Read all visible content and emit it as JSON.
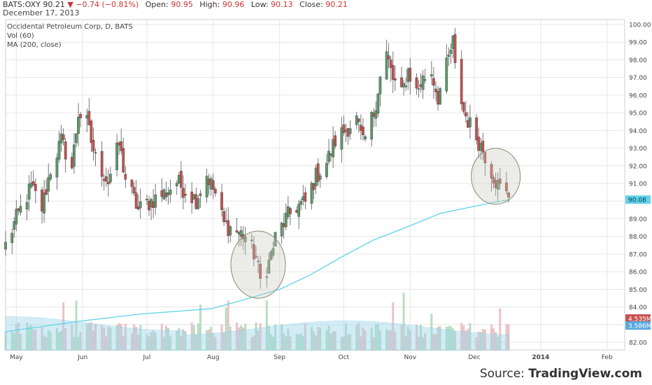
{
  "header": {
    "symbol": "BATS:OXY",
    "price": "90.21",
    "change": "−0.74 (−0.81%)",
    "open_label": "Open:",
    "open": "90.95",
    "high_label": "High:",
    "high": "90.96",
    "low_label": "Low:",
    "low": "90.13",
    "close_label": "Close:",
    "close": "90.21",
    "date": "December 17, 2013"
  },
  "legend": {
    "line1": "Occidental Petroleum Corp, D, BATS",
    "line2": "Vol (60)",
    "line3": "MA (200, close)"
  },
  "source": {
    "prefix": "Source: ",
    "brand": "TradingView.com"
  },
  "colors": {
    "up": "#5c9a6a",
    "down": "#c85050",
    "ma": "#5fd3e8",
    "grid": "#e6e6e6",
    "badge": "#5fd3e8",
    "vol_up": "#a9d8b5",
    "vol_down": "#e8b7bd",
    "vol_ma": "#9fd6ea"
  },
  "chart_data": {
    "type": "candlestick",
    "x_ticks": [
      "May",
      "Jun",
      "Jul",
      "Aug",
      "Sep",
      "Oct",
      "Nov",
      "Dec",
      "2014",
      "Feb"
    ],
    "y_ticks": [
      "82.00",
      "83.00",
      "84.00",
      "85.00",
      "86.00",
      "87.00",
      "88.00",
      "89.00",
      "90.00",
      "91.00",
      "92.00",
      "93.00",
      "94.00",
      "95.00",
      "96.00",
      "97.00",
      "98.00",
      "99.00",
      "100.00"
    ],
    "ylim": [
      81.5,
      100.4
    ],
    "x_range": [
      "2013-04-26",
      "2014-02-05"
    ],
    "price_series": [
      {
        "date": "2013-04-26",
        "close": 87.5
      },
      {
        "date": "2013-05-01",
        "close": 89.0
      },
      {
        "date": "2013-05-08",
        "close": 90.8
      },
      {
        "date": "2013-05-13",
        "close": 89.6
      },
      {
        "date": "2013-05-17",
        "close": 91.8
      },
      {
        "date": "2013-05-22",
        "close": 93.4
      },
      {
        "date": "2013-05-27",
        "close": 91.9
      },
      {
        "date": "2013-05-30",
        "close": 95.0
      },
      {
        "date": "2013-06-03",
        "close": 94.4
      },
      {
        "date": "2013-06-07",
        "close": 92.4
      },
      {
        "date": "2013-06-13",
        "close": 91.1
      },
      {
        "date": "2013-06-18",
        "close": 93.2
      },
      {
        "date": "2013-06-21",
        "close": 91.3
      },
      {
        "date": "2013-06-27",
        "close": 89.5
      },
      {
        "date": "2013-07-03",
        "close": 90.0
      },
      {
        "date": "2013-07-10",
        "close": 90.5
      },
      {
        "date": "2013-07-15",
        "close": 91.1
      },
      {
        "date": "2013-07-19",
        "close": 90.6
      },
      {
        "date": "2013-07-24",
        "close": 90.1
      },
      {
        "date": "2013-07-29",
        "close": 91.5
      },
      {
        "date": "2013-08-02",
        "close": 90.4
      },
      {
        "date": "2013-08-06",
        "close": 88.7
      },
      {
        "date": "2013-08-12",
        "close": 88.3
      },
      {
        "date": "2013-08-16",
        "close": 88.0
      },
      {
        "date": "2013-08-21",
        "close": 86.8
      },
      {
        "date": "2013-08-23",
        "close": 85.5
      },
      {
        "date": "2013-08-27",
        "close": 86.5
      },
      {
        "date": "2013-08-30",
        "close": 87.9
      },
      {
        "date": "2013-09-04",
        "close": 89.0
      },
      {
        "date": "2013-09-09",
        "close": 89.7
      },
      {
        "date": "2013-09-13",
        "close": 89.9
      },
      {
        "date": "2013-09-18",
        "close": 91.4
      },
      {
        "date": "2013-09-23",
        "close": 92.2
      },
      {
        "date": "2013-09-27",
        "close": 93.4
      },
      {
        "date": "2013-10-02",
        "close": 94.1
      },
      {
        "date": "2013-10-07",
        "close": 94.6
      },
      {
        "date": "2013-10-10",
        "close": 93.2
      },
      {
        "date": "2013-10-15",
        "close": 95.0
      },
      {
        "date": "2013-10-18",
        "close": 97.0
      },
      {
        "date": "2013-10-21",
        "close": 98.3
      },
      {
        "date": "2013-10-24",
        "close": 96.9
      },
      {
        "date": "2013-10-28",
        "close": 96.0
      },
      {
        "date": "2013-10-31",
        "close": 97.4
      },
      {
        "date": "2013-11-04",
        "close": 96.2
      },
      {
        "date": "2013-11-07",
        "close": 96.9
      },
      {
        "date": "2013-11-11",
        "close": 97.3
      },
      {
        "date": "2013-11-14",
        "close": 95.9
      },
      {
        "date": "2013-11-18",
        "close": 97.6
      },
      {
        "date": "2013-11-21",
        "close": 99.0
      },
      {
        "date": "2013-11-22",
        "close": 97.5
      },
      {
        "date": "2013-11-26",
        "close": 95.1
      },
      {
        "date": "2013-11-29",
        "close": 94.3
      },
      {
        "date": "2013-12-03",
        "close": 93.4
      },
      {
        "date": "2013-12-05",
        "close": 92.9
      },
      {
        "date": "2013-12-09",
        "close": 91.7
      },
      {
        "date": "2013-12-12",
        "close": 90.9
      },
      {
        "date": "2013-12-17",
        "close": 90.21
      }
    ],
    "ma_series": [
      {
        "date": "2013-04-26",
        "value": 82.6
      },
      {
        "date": "2013-05-31",
        "value": 83.2
      },
      {
        "date": "2013-06-28",
        "value": 83.6
      },
      {
        "date": "2013-07-31",
        "value": 83.9
      },
      {
        "date": "2013-08-15",
        "value": 84.4
      },
      {
        "date": "2013-09-01",
        "value": 85.0
      },
      {
        "date": "2013-09-15",
        "value": 85.8
      },
      {
        "date": "2013-10-01",
        "value": 86.9
      },
      {
        "date": "2013-10-15",
        "value": 87.8
      },
      {
        "date": "2013-11-01",
        "value": 88.6
      },
      {
        "date": "2013-11-15",
        "value": 89.3
      },
      {
        "date": "2013-12-01",
        "value": 89.7
      },
      {
        "date": "2013-12-17",
        "value": 90.08
      }
    ],
    "badges": {
      "price_last": "90.08",
      "volume": "4.535M",
      "volume_ma": "3.586M"
    },
    "annotations": [
      {
        "shape": "ellipse",
        "center_date": "2013-08-22",
        "center_price": 86.4
      },
      {
        "shape": "ellipse",
        "center_date": "2013-12-11",
        "center_price": 91.4
      }
    ]
  }
}
